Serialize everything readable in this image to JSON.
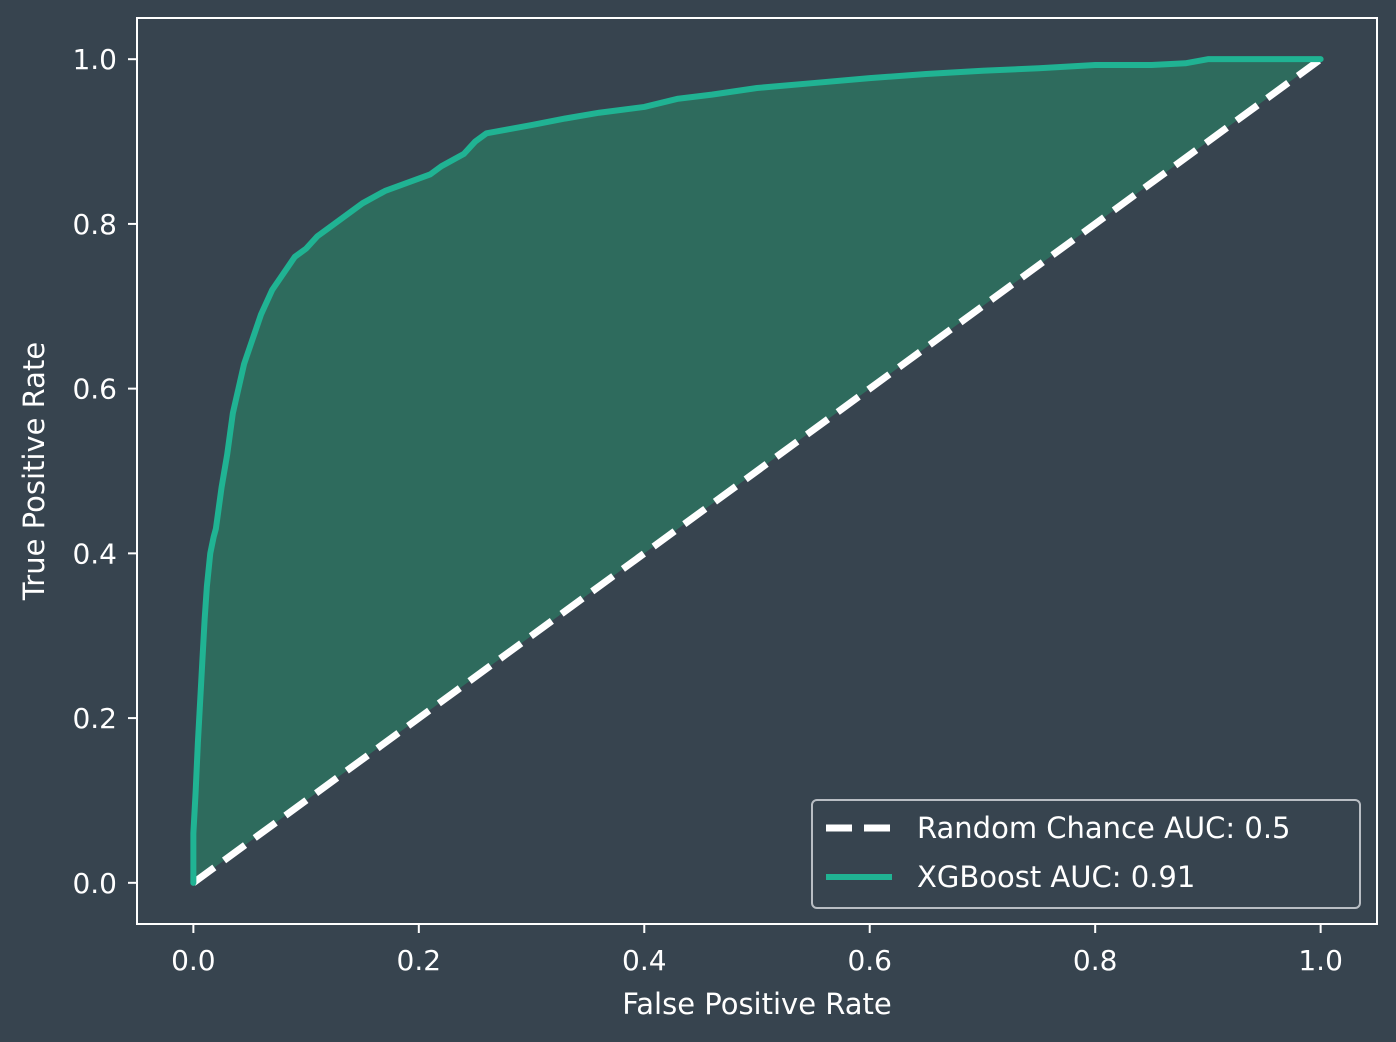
{
  "colors": {
    "background": "#37444f",
    "axes": "#ffffff",
    "roc_line": "#20b393",
    "roc_fill": "#2e6b5d",
    "random_line": "#ffffff"
  },
  "chart_data": {
    "type": "line",
    "title": "",
    "xlabel": "False Positive Rate",
    "ylabel": "True Positive Rate",
    "xlim": [
      -0.05,
      1.05
    ],
    "ylim": [
      -0.05,
      1.05
    ],
    "xticks": [
      0.0,
      0.2,
      0.4,
      0.6,
      0.8,
      1.0
    ],
    "xtick_labels": [
      "0.0",
      "0.2",
      "0.4",
      "0.6",
      "0.8",
      "1.0"
    ],
    "yticks": [
      0.0,
      0.2,
      0.4,
      0.6,
      0.8,
      1.0
    ],
    "ytick_labels": [
      "0.0",
      "0.2",
      "0.4",
      "0.6",
      "0.8",
      "1.0"
    ],
    "grid": false,
    "legend_position": "lower-right",
    "series": [
      {
        "name": "Random Chance AUC: 0.5",
        "style": "dashed",
        "x": [
          0.0,
          1.0
        ],
        "y": [
          0.0,
          1.0
        ]
      },
      {
        "name": "XGBoost AUC: 0.91",
        "style": "solid",
        "fill_to_diagonal": true,
        "x": [
          0.0,
          0.0,
          0.002,
          0.004,
          0.006,
          0.008,
          0.01,
          0.012,
          0.015,
          0.018,
          0.02,
          0.025,
          0.03,
          0.035,
          0.04,
          0.045,
          0.05,
          0.055,
          0.06,
          0.07,
          0.08,
          0.09,
          0.1,
          0.11,
          0.12,
          0.13,
          0.14,
          0.15,
          0.17,
          0.19,
          0.21,
          0.22,
          0.24,
          0.25,
          0.26,
          0.28,
          0.3,
          0.33,
          0.36,
          0.4,
          0.43,
          0.46,
          0.5,
          0.55,
          0.6,
          0.65,
          0.7,
          0.75,
          0.8,
          0.85,
          0.88,
          0.9,
          0.93,
          0.96,
          1.0
        ],
        "y": [
          0.0,
          0.06,
          0.11,
          0.17,
          0.22,
          0.27,
          0.32,
          0.36,
          0.4,
          0.42,
          0.43,
          0.48,
          0.52,
          0.57,
          0.6,
          0.63,
          0.65,
          0.67,
          0.69,
          0.72,
          0.74,
          0.76,
          0.77,
          0.785,
          0.795,
          0.805,
          0.815,
          0.825,
          0.84,
          0.85,
          0.86,
          0.87,
          0.885,
          0.9,
          0.91,
          0.915,
          0.92,
          0.928,
          0.935,
          0.942,
          0.952,
          0.957,
          0.965,
          0.971,
          0.977,
          0.982,
          0.986,
          0.989,
          0.993,
          0.993,
          0.995,
          1.0,
          1.0,
          1.0,
          1.0
        ]
      }
    ]
  }
}
